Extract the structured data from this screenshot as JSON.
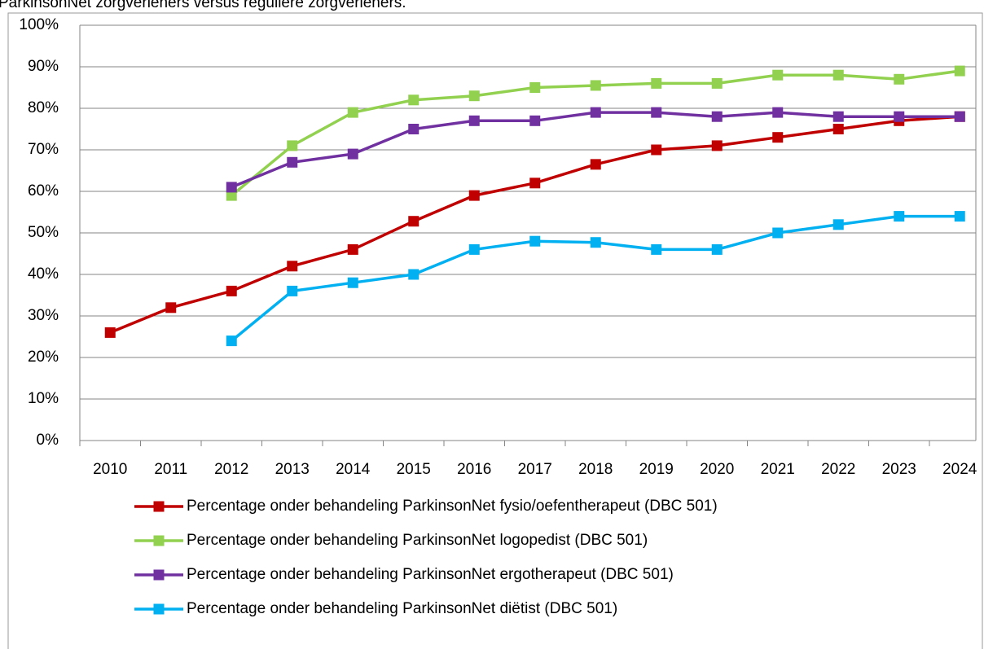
{
  "chart_data": {
    "type": "line",
    "title": "ParkinsonNet zorgverleners versus reguliere zorgverleners.",
    "categories": [
      "2010",
      "2011",
      "2012",
      "2013",
      "2014",
      "2015",
      "2016",
      "2017",
      "2018",
      "2019",
      "2020",
      "2021",
      "2022",
      "2023",
      "2024"
    ],
    "series": [
      {
        "name": "Percentage onder behandeling ParkinsonNet fysio/oefentherapeut (DBC 501)",
        "color": "#c00000",
        "values": [
          26,
          32,
          36,
          42,
          46,
          52.8,
          59,
          62,
          66.5,
          70,
          71,
          73,
          75,
          77,
          78
        ]
      },
      {
        "name": "Percentage onder behandeling ParkinsonNet logopedist (DBC 501)",
        "color": "#92d050",
        "values": [
          null,
          null,
          59,
          71,
          79,
          82,
          83,
          85,
          85.5,
          86,
          86,
          88,
          88,
          87,
          89
        ]
      },
      {
        "name": "Percentage onder behandeling ParkinsonNet ergotherapeut (DBC 501)",
        "color": "#7030a0",
        "values": [
          null,
          null,
          61,
          67,
          69,
          75,
          77,
          77,
          79,
          79,
          78,
          79,
          78,
          78,
          78
        ]
      },
      {
        "name": "Percentage onder behandeling ParkinsonNet diëtist (DBC 501)",
        "color": "#00b0f0",
        "values": [
          null,
          null,
          24,
          36,
          38,
          40,
          46,
          48,
          47.7,
          46,
          46,
          50,
          52,
          54,
          54
        ]
      }
    ],
    "ylim": [
      0,
      100
    ],
    "yticks": [
      {
        "value": 0,
        "label": "0%"
      },
      {
        "value": 10,
        "label": "10%"
      },
      {
        "value": 20,
        "label": "20%"
      },
      {
        "value": 30,
        "label": "30%"
      },
      {
        "value": 40,
        "label": "40%"
      },
      {
        "value": 50,
        "label": "50%"
      },
      {
        "value": 60,
        "label": "60%"
      },
      {
        "value": 70,
        "label": "70%"
      },
      {
        "value": 80,
        "label": "80%"
      },
      {
        "value": 90,
        "label": "90%"
      },
      {
        "value": 100,
        "label": "100%"
      }
    ],
    "grid": true,
    "legend": "bottom"
  }
}
